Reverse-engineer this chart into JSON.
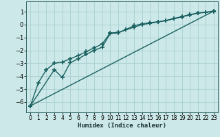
{
  "xlabel": "Humidex (Indice chaleur)",
  "background_color": "#cce8e8",
  "grid_color": "#a8d0d0",
  "line_color": "#1a6060",
  "xlim": [
    -0.5,
    23.5
  ],
  "ylim": [
    -6.8,
    1.8
  ],
  "xticks": [
    0,
    1,
    2,
    3,
    4,
    5,
    6,
    7,
    8,
    9,
    10,
    11,
    12,
    13,
    14,
    15,
    16,
    17,
    18,
    19,
    20,
    21,
    22,
    23
  ],
  "yticks": [
    -6,
    -5,
    -4,
    -3,
    -2,
    -1,
    0,
    1
  ],
  "line1_x": [
    0,
    1,
    2,
    3,
    4,
    5,
    6,
    7,
    8,
    9,
    10,
    11,
    12,
    13,
    14,
    15,
    16,
    17,
    18,
    19,
    20,
    21,
    22,
    23
  ],
  "line1_y": [
    -6.3,
    -4.5,
    -3.5,
    -3.0,
    -2.9,
    -2.65,
    -2.4,
    -2.1,
    -1.8,
    -1.5,
    -0.65,
    -0.6,
    -0.4,
    -0.2,
    0.0,
    0.1,
    0.2,
    0.3,
    0.45,
    0.6,
    0.75,
    0.88,
    0.95,
    1.02
  ],
  "line2_x": [
    0,
    3,
    4,
    5,
    6,
    7,
    8,
    9,
    10,
    11,
    12,
    13,
    14,
    15,
    16,
    17,
    18,
    19,
    20,
    21,
    22,
    23
  ],
  "line2_y": [
    -6.3,
    -3.5,
    -4.1,
    -2.95,
    -2.65,
    -2.3,
    -2.0,
    -1.75,
    -0.7,
    -0.65,
    -0.38,
    -0.08,
    0.05,
    0.15,
    0.22,
    0.32,
    0.48,
    0.62,
    0.78,
    0.9,
    0.97,
    1.05
  ],
  "line3_x": [
    0,
    23
  ],
  "line3_y": [
    -6.3,
    1.05
  ],
  "marker": "+",
  "markersize": 4.0,
  "markeredgewidth": 1.2,
  "linewidth": 1.0
}
